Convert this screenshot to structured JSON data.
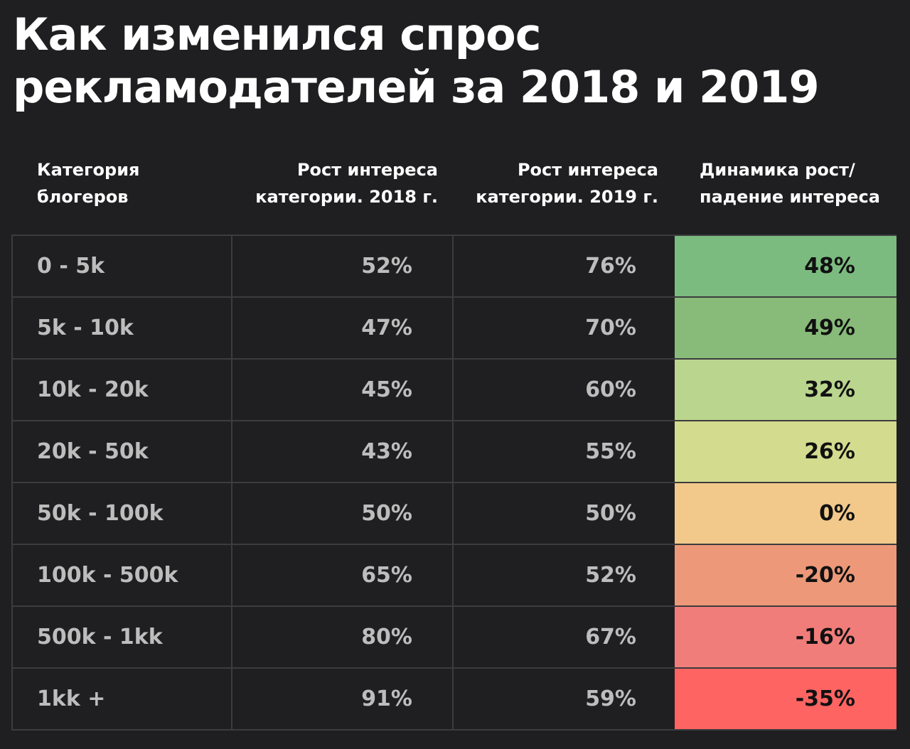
{
  "title": {
    "line1": "Как изменился спрос",
    "line2": "рекламодателей за 2018 и 2019"
  },
  "chart_data": {
    "type": "table",
    "columns": [
      {
        "line1": "Категория",
        "line2": "блогеров"
      },
      {
        "line1": "Рост интереса",
        "line2": "категории. 2018 г."
      },
      {
        "line1": "Рост интереса",
        "line2": "категории. 2019 г."
      },
      {
        "line1": "Динамика рост/",
        "line2": "падение интереса"
      }
    ],
    "rows": [
      {
        "category": "0 - 5k",
        "y2018": "52%",
        "y2019": "76%",
        "dynamic": "48%",
        "color": "#7cbb80"
      },
      {
        "category": "5k - 10k",
        "y2018": "47%",
        "y2019": "70%",
        "dynamic": "49%",
        "color": "#88bb79"
      },
      {
        "category": "10k - 20k",
        "y2018": "45%",
        "y2019": "60%",
        "dynamic": "32%",
        "color": "#bad58d"
      },
      {
        "category": "20k - 50k",
        "y2018": "43%",
        "y2019": "55%",
        "dynamic": "26%",
        "color": "#d3dc8e"
      },
      {
        "category": "50k - 100k",
        "y2018": "50%",
        "y2019": "50%",
        "dynamic": "0%",
        "color": "#f2c98a"
      },
      {
        "category": "100k - 500k",
        "y2018": "65%",
        "y2019": "52%",
        "dynamic": "-20%",
        "color": "#ed9979"
      },
      {
        "category": "500k - 1kk",
        "y2018": "80%",
        "y2019": "67%",
        "dynamic": "-16%",
        "color": "#f07d7a"
      },
      {
        "category": "1kk +",
        "y2018": "91%",
        "y2019": "59%",
        "dynamic": "-35%",
        "color": "#fd6462"
      }
    ]
  }
}
